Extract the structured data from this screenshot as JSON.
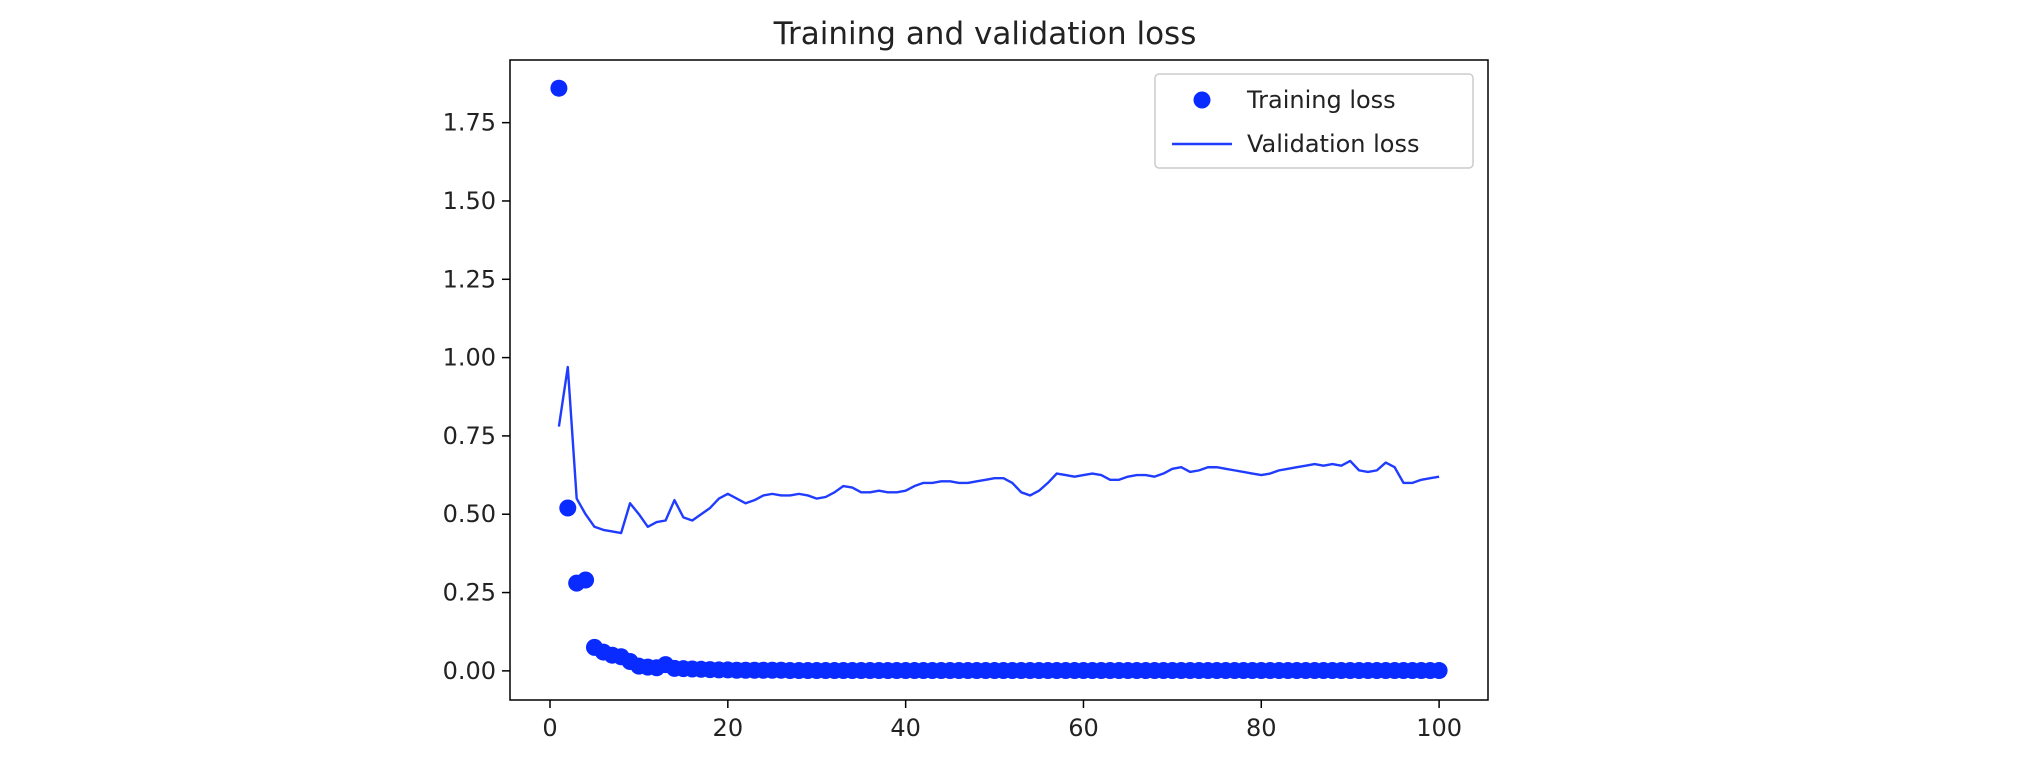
{
  "chart_data": {
    "type": "scatter",
    "title": "Training and validation loss",
    "xlabel": "",
    "ylabel": "",
    "xlim": [
      -4.5,
      105.5
    ],
    "ylim": [
      -0.093,
      1.95
    ],
    "xticks": [
      0,
      20,
      40,
      60,
      80,
      100
    ],
    "xtick_labels": [
      "0",
      "20",
      "40",
      "60",
      "80",
      "100"
    ],
    "yticks": [
      0.0,
      0.25,
      0.5,
      0.75,
      1.0,
      1.25,
      1.5,
      1.75
    ],
    "ytick_labels": [
      "0.00",
      "0.25",
      "0.50",
      "0.75",
      "1.00",
      "1.25",
      "1.50",
      "1.75"
    ],
    "grid": false,
    "legend_position": "upper right",
    "series": [
      {
        "name": "Training loss",
        "style": "points",
        "color": "#0a2bff",
        "x": [
          1,
          2,
          3,
          4,
          5,
          6,
          7,
          8,
          9,
          10,
          11,
          12,
          13,
          14,
          15,
          16,
          17,
          18,
          19,
          20,
          21,
          22,
          23,
          24,
          25,
          26,
          27,
          28,
          29,
          30,
          31,
          32,
          33,
          34,
          35,
          36,
          37,
          38,
          39,
          40,
          41,
          42,
          43,
          44,
          45,
          46,
          47,
          48,
          49,
          50,
          51,
          52,
          53,
          54,
          55,
          56,
          57,
          58,
          59,
          60,
          61,
          62,
          63,
          64,
          65,
          66,
          67,
          68,
          69,
          70,
          71,
          72,
          73,
          74,
          75,
          76,
          77,
          78,
          79,
          80,
          81,
          82,
          83,
          84,
          85,
          86,
          87,
          88,
          89,
          90,
          91,
          92,
          93,
          94,
          95,
          96,
          97,
          98,
          99,
          100
        ],
        "y": [
          1.86,
          0.52,
          0.28,
          0.29,
          0.075,
          0.06,
          0.05,
          0.045,
          0.03,
          0.015,
          0.012,
          0.01,
          0.02,
          0.008,
          0.007,
          0.006,
          0.005,
          0.004,
          0.003,
          0.003,
          0.002,
          0.002,
          0.002,
          0.002,
          0.002,
          0.002,
          0.001,
          0.001,
          0.001,
          0.001,
          0.001,
          0.001,
          0.001,
          0.001,
          0.001,
          0.001,
          0.001,
          0.001,
          0.001,
          0.001,
          0.001,
          0.001,
          0.001,
          0.001,
          0.001,
          0.001,
          0.001,
          0.001,
          0.001,
          0.001,
          0.001,
          0.001,
          0.001,
          0.001,
          0.001,
          0.001,
          0.001,
          0.001,
          0.001,
          0.001,
          0.001,
          0.001,
          0.001,
          0.001,
          0.001,
          0.001,
          0.001,
          0.001,
          0.001,
          0.001,
          0.001,
          0.001,
          0.001,
          0.001,
          0.001,
          0.001,
          0.001,
          0.001,
          0.001,
          0.001,
          0.001,
          0.001,
          0.001,
          0.001,
          0.001,
          0.001,
          0.001,
          0.001,
          0.001,
          0.001,
          0.001,
          0.001,
          0.001,
          0.001,
          0.001,
          0.001,
          0.001,
          0.001,
          0.001,
          0.001
        ]
      },
      {
        "name": "Validation loss",
        "style": "line",
        "color": "#1f3cff",
        "x": [
          1,
          2,
          3,
          4,
          5,
          6,
          7,
          8,
          9,
          10,
          11,
          12,
          13,
          14,
          15,
          16,
          17,
          18,
          19,
          20,
          21,
          22,
          23,
          24,
          25,
          26,
          27,
          28,
          29,
          30,
          31,
          32,
          33,
          34,
          35,
          36,
          37,
          38,
          39,
          40,
          41,
          42,
          43,
          44,
          45,
          46,
          47,
          48,
          49,
          50,
          51,
          52,
          53,
          54,
          55,
          56,
          57,
          58,
          59,
          60,
          61,
          62,
          63,
          64,
          65,
          66,
          67,
          68,
          69,
          70,
          71,
          72,
          73,
          74,
          75,
          76,
          77,
          78,
          79,
          80,
          81,
          82,
          83,
          84,
          85,
          86,
          87,
          88,
          89,
          90,
          91,
          92,
          93,
          94,
          95,
          96,
          97,
          98,
          99,
          100
        ],
        "y": [
          0.78,
          0.97,
          0.55,
          0.5,
          0.46,
          0.45,
          0.445,
          0.44,
          0.535,
          0.5,
          0.46,
          0.475,
          0.48,
          0.545,
          0.49,
          0.48,
          0.5,
          0.52,
          0.55,
          0.565,
          0.55,
          0.535,
          0.545,
          0.56,
          0.565,
          0.56,
          0.56,
          0.565,
          0.56,
          0.55,
          0.555,
          0.57,
          0.59,
          0.585,
          0.57,
          0.57,
          0.575,
          0.57,
          0.57,
          0.575,
          0.59,
          0.6,
          0.6,
          0.605,
          0.605,
          0.6,
          0.6,
          0.605,
          0.61,
          0.615,
          0.615,
          0.6,
          0.57,
          0.56,
          0.575,
          0.6,
          0.63,
          0.625,
          0.62,
          0.625,
          0.63,
          0.625,
          0.61,
          0.61,
          0.62,
          0.625,
          0.625,
          0.62,
          0.63,
          0.645,
          0.65,
          0.635,
          0.64,
          0.65,
          0.65,
          0.645,
          0.64,
          0.635,
          0.63,
          0.625,
          0.63,
          0.64,
          0.645,
          0.65,
          0.655,
          0.66,
          0.655,
          0.66,
          0.655,
          0.67,
          0.64,
          0.635,
          0.64,
          0.665,
          0.65,
          0.6,
          0.6,
          0.61,
          0.615,
          0.62
        ]
      }
    ]
  }
}
